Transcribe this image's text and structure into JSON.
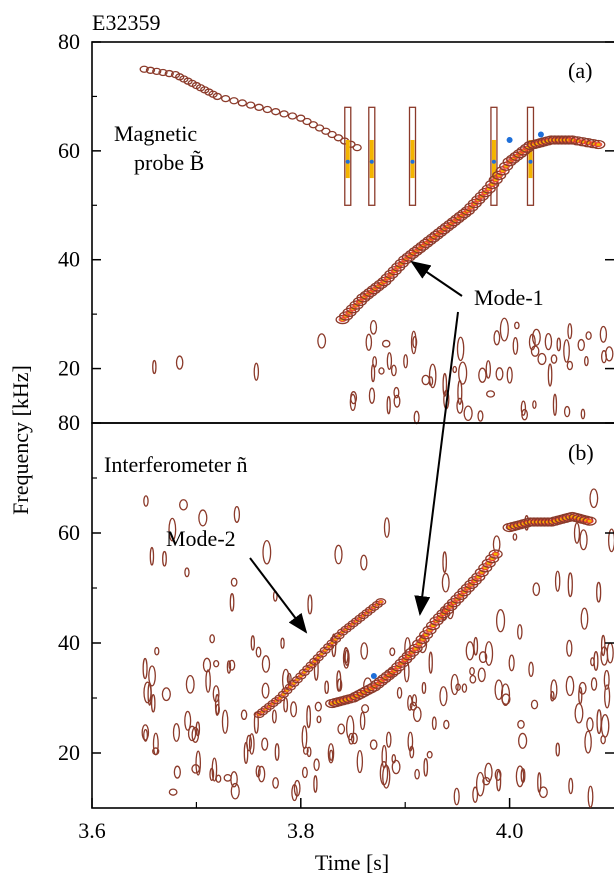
{
  "figure": {
    "shot_label": "E32359",
    "ylabel": "Frequency [kHz]",
    "xlabel": "Time [s]",
    "xticks": [
      {
        "value": 3.6,
        "label": "3.6"
      },
      {
        "value": 3.8,
        "label": "3.8"
      },
      {
        "value": 4.0,
        "label": "4.0"
      }
    ],
    "colors": {
      "contour_low": "#8b3a2a",
      "contour_mid": "#e8382a",
      "contour_high": "#f4b400",
      "contour_peak": "#1e6fd9"
    }
  },
  "chart_data": [
    {
      "type": "heatmap",
      "panel": "(a)",
      "annotation_title": "Magnetic probe B̃",
      "annotation_title_line1": "Magnetic",
      "annotation_title_line2": "probe B̃",
      "arrow_label": "Mode-1",
      "xlim": [
        3.6,
        4.1
      ],
      "ylim": [
        10,
        80
      ],
      "yticks": [
        {
          "value": 20,
          "label": "20"
        },
        {
          "value": 40,
          "label": "40"
        },
        {
          "value": 60,
          "label": "60"
        },
        {
          "value": 80,
          "label": "80"
        }
      ],
      "mode1_track": {
        "t": [
          3.84,
          3.86,
          3.88,
          3.9,
          3.92,
          3.94,
          3.96,
          3.98,
          4.0,
          4.02,
          4.04,
          4.06,
          4.09
        ],
        "f": [
          29,
          33,
          36,
          40,
          43,
          46,
          49,
          53,
          58,
          61,
          62,
          62,
          61
        ]
      },
      "early_track": {
        "t": [
          3.65,
          3.68,
          3.7,
          3.72,
          3.76,
          3.8,
          3.83,
          3.86
        ],
        "f": [
          75,
          74,
          72,
          70,
          68,
          66,
          63,
          60
        ]
      },
      "bursts_t": [
        3.845,
        3.868,
        3.907,
        3.985,
        4.02
      ]
    },
    {
      "type": "heatmap",
      "panel": "(b)",
      "annotation_title": "Interferometer ñ",
      "arrow_label": "Mode-2",
      "xlim": [
        3.6,
        4.1
      ],
      "ylim": [
        10,
        80
      ],
      "yticks": [
        {
          "value": 20,
          "label": "20"
        },
        {
          "value": 40,
          "label": "40"
        },
        {
          "value": 60,
          "label": "60"
        },
        {
          "value": 80,
          "label": "80"
        }
      ],
      "mode1_track": {
        "t": [
          3.83,
          3.85,
          3.87,
          3.89,
          3.91,
          3.93,
          3.95,
          3.97,
          3.99
        ],
        "f": [
          29,
          30,
          32,
          35,
          39,
          44,
          48,
          52,
          57
        ]
      },
      "mode2_track": {
        "t": [
          3.76,
          3.78,
          3.8,
          3.82,
          3.84,
          3.86,
          3.88
        ],
        "f": [
          27,
          30,
          34,
          38,
          42,
          45,
          48
        ]
      },
      "plateau_track": {
        "t": [
          4.0,
          4.02,
          4.04,
          4.06,
          4.08
        ],
        "f": [
          61,
          62,
          62,
          63,
          62
        ]
      }
    }
  ]
}
